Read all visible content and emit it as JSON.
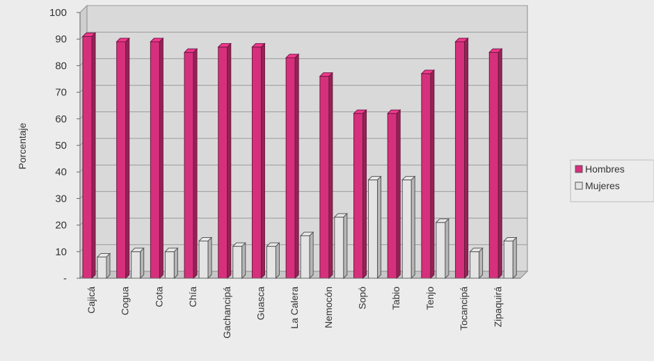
{
  "chart_data": {
    "type": "bar",
    "categories": [
      "Cajicá",
      "Cogua",
      "Cota",
      "Chía",
      "Gachancipá",
      "Guasca",
      "La Calera",
      "Nemocón",
      "Sopó",
      "Tabio",
      "Tenjo",
      "Tocancipá",
      "Zipaquirá"
    ],
    "series": [
      {
        "name": "Hombres",
        "color": "#d6307c",
        "values": [
          91,
          89,
          89,
          85,
          87,
          87,
          83,
          76,
          62,
          62,
          77,
          89,
          85
        ]
      },
      {
        "name": "Mujeres",
        "color": "#e4e4e4",
        "values": [
          8,
          10,
          10,
          14,
          12,
          12,
          16,
          23,
          37,
          37,
          21,
          10,
          14
        ]
      }
    ],
    "yticks": [
      100,
      90,
      80,
      70,
      60,
      50,
      40,
      30,
      20,
      10,
      "-"
    ],
    "ylabel": "Porcentaje",
    "xlabel": "",
    "ylim": [
      0,
      100
    ],
    "grid": true,
    "legend_position": "right"
  }
}
